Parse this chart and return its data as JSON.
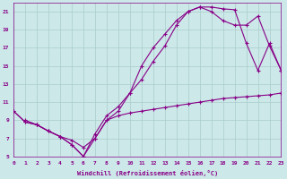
{
  "background_color": "#cce8e8",
  "grid_color": "#aacccc",
  "line_color": "#880088",
  "marker": "+",
  "xlabel": "Windchill (Refroidissement éolien,°C)",
  "xlim": [
    0,
    23
  ],
  "ylim": [
    5,
    22
  ],
  "xticks": [
    0,
    1,
    2,
    3,
    4,
    5,
    6,
    7,
    8,
    9,
    10,
    11,
    12,
    13,
    14,
    15,
    16,
    17,
    18,
    19,
    20,
    21,
    22,
    23
  ],
  "yticks": [
    5,
    7,
    9,
    11,
    13,
    15,
    17,
    19,
    21
  ],
  "line1_x": [
    0,
    1,
    2,
    3,
    4,
    5,
    6,
    7,
    8,
    9,
    10,
    11,
    12,
    13,
    14,
    15,
    16,
    17,
    18,
    19,
    20,
    21,
    22,
    23
  ],
  "line1_y": [
    10.0,
    8.8,
    8.5,
    7.8,
    7.2,
    6.3,
    5.0,
    7.0,
    9.0,
    9.5,
    9.8,
    10.0,
    10.2,
    10.4,
    10.6,
    10.8,
    11.0,
    11.2,
    11.4,
    11.5,
    11.6,
    11.7,
    11.8,
    12.0
  ],
  "line2_x": [
    0,
    1,
    2,
    3,
    4,
    5,
    6,
    7,
    8,
    9,
    10,
    11,
    12,
    13,
    14,
    15,
    16,
    17,
    18,
    19,
    20,
    21,
    22,
    23
  ],
  "line2_y": [
    10.0,
    8.8,
    8.5,
    7.8,
    7.2,
    6.3,
    5.0,
    7.5,
    9.5,
    10.5,
    12.0,
    13.5,
    15.5,
    17.2,
    19.5,
    21.0,
    21.5,
    21.5,
    21.3,
    21.2,
    17.5,
    14.5,
    17.5,
    14.5
  ],
  "line3_x": [
    1,
    2,
    3,
    4,
    5,
    6,
    7,
    8,
    9,
    10,
    11,
    12,
    13,
    14,
    15,
    16,
    17,
    18,
    19,
    20,
    21,
    22,
    23
  ],
  "line3_y": [
    9.0,
    8.5,
    7.8,
    7.2,
    6.8,
    6.0,
    7.0,
    9.0,
    10.0,
    12.0,
    15.0,
    17.0,
    18.5,
    20.0,
    21.0,
    21.5,
    21.0,
    20.0,
    19.5,
    19.5,
    20.5,
    17.2,
    14.5
  ]
}
